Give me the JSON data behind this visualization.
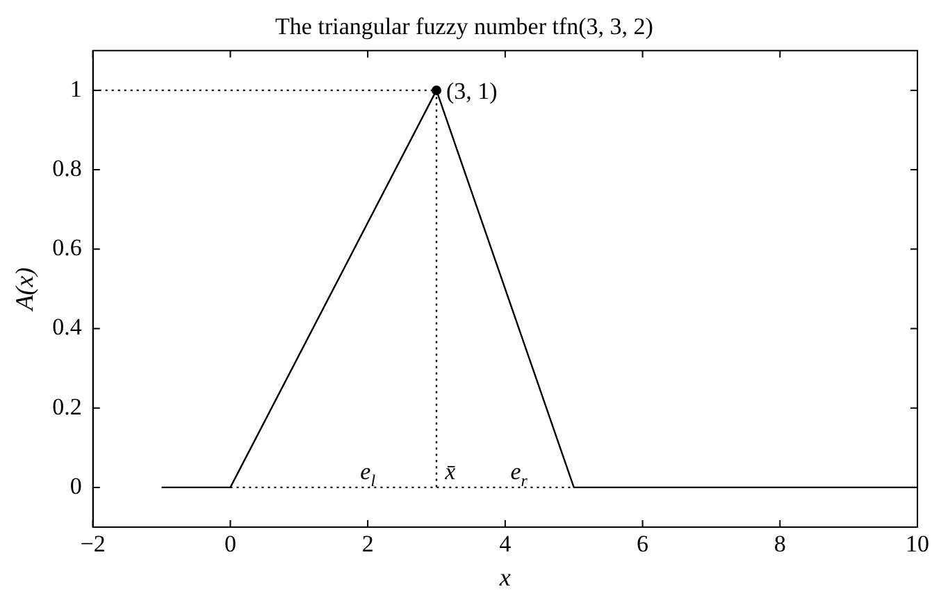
{
  "chart_data": {
    "type": "line",
    "title": "The triangular fuzzy number tfn(3, 3, 2)",
    "xlabel": "x",
    "ylabel": "A(x)",
    "series": [
      {
        "x": [
          -1,
          0,
          3,
          5,
          10
        ],
        "values": [
          0,
          0,
          1,
          0,
          0
        ],
        "color": "#000000",
        "marker": "none",
        "line_style": "solid"
      },
      {
        "type": "scatter",
        "x": [
          3
        ],
        "values": [
          1
        ],
        "color": "#000000",
        "marker": "circle"
      },
      {
        "x": [
          -2,
          3,
          3
        ],
        "values": [
          1,
          1,
          0
        ],
        "color": "#000000",
        "marker": "none",
        "line_style": "dotted"
      },
      {
        "x": [
          0,
          5
        ],
        "values": [
          0,
          0
        ],
        "color": "#000000",
        "marker": "none",
        "line_style": "dotted"
      }
    ],
    "annotations": [
      {
        "text": "(3, 1)",
        "x": 3,
        "y": 1
      },
      {
        "text": "e$_{l}$",
        "x": 2,
        "y": 0
      },
      {
        "text": "x̄",
        "x": 3.2,
        "y": 0
      },
      {
        "text": "e$_{r}$",
        "x": 4.2,
        "y": 0
      }
    ],
    "xlim": [
      -2,
      10
    ],
    "xticks": [
      {
        "value": -2,
        "label": "−2"
      },
      0,
      2,
      4,
      6,
      8,
      10
    ],
    "ylim": [
      -0.1,
      1.1
    ],
    "yticks": [
      0,
      0.2,
      0.4,
      0.6,
      0.8,
      1
    ],
    "grid": false,
    "legend": false
  }
}
